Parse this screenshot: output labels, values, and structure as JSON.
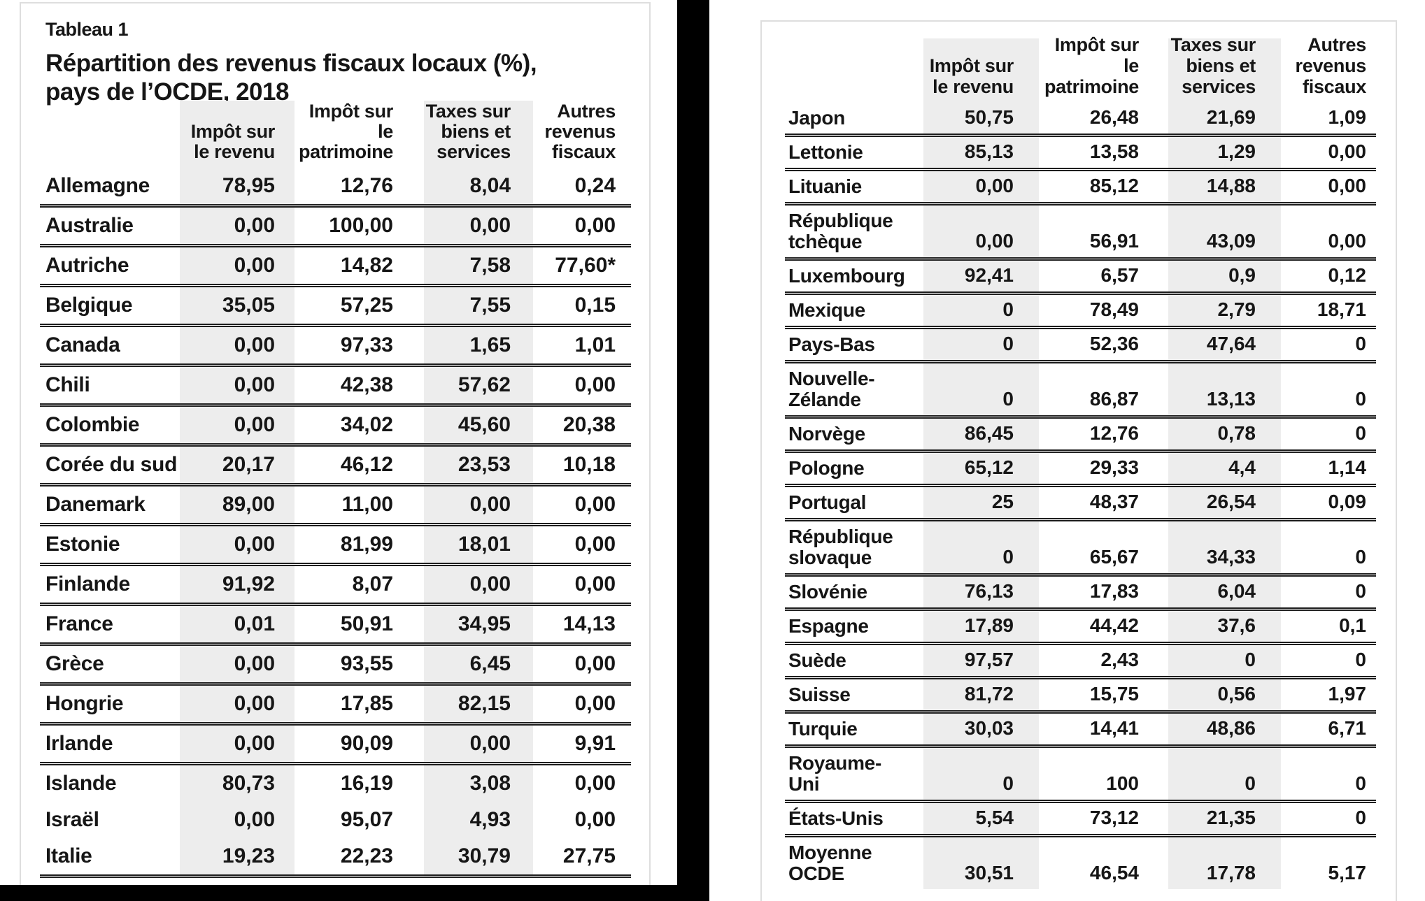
{
  "page": {
    "table_label": "Tableau 1",
    "title_line1": "Répartition des revenus fiscaux locaux (%),",
    "title_line2": "pays de l’OCDE, 2018"
  },
  "colors": {
    "column_shading": "#ededed",
    "separator_line": "#1e1e1e",
    "panel_border": "#dedede",
    "frame_black": "#000000",
    "text": "#161616"
  },
  "tables": {
    "left": {
      "headers": [
        "",
        "Impôt sur\nle revenu",
        "Impôt sur le\npatrimoine",
        "Taxes sur\nbiens et\nservices",
        "Autres\nrevenus\nfiscaux"
      ],
      "rows": [
        {
          "country": "Allemagne",
          "values": [
            "78,95",
            "12,76",
            "8,04",
            "0,24"
          ]
        },
        {
          "country": "Australie",
          "values": [
            "0,00",
            "100,00",
            "0,00",
            "0,00"
          ]
        },
        {
          "country": "Autriche",
          "values": [
            "0,00",
            "14,82",
            "7,58",
            "77,60*"
          ]
        },
        {
          "country": "Belgique",
          "values": [
            "35,05",
            "57,25",
            "7,55",
            "0,15"
          ]
        },
        {
          "country": "Canada",
          "values": [
            "0,00",
            "97,33",
            "1,65",
            "1,01"
          ]
        },
        {
          "country": "Chili",
          "values": [
            "0,00",
            "42,38",
            "57,62",
            "0,00"
          ]
        },
        {
          "country": "Colombie",
          "values": [
            "0,00",
            "34,02",
            "45,60",
            "20,38"
          ]
        },
        {
          "country": "Corée du sud",
          "values": [
            "20,17",
            "46,12",
            "23,53",
            "10,18"
          ]
        },
        {
          "country": "Danemark",
          "values": [
            "89,00",
            "11,00",
            "0,00",
            "0,00"
          ]
        },
        {
          "country": "Estonie",
          "values": [
            "0,00",
            "81,99",
            "18,01",
            "0,00"
          ]
        },
        {
          "country": "Finlande",
          "values": [
            "91,92",
            "8,07",
            "0,00",
            "0,00"
          ]
        },
        {
          "country": "France",
          "values": [
            "0,01",
            "50,91",
            "34,95",
            "14,13"
          ]
        },
        {
          "country": "Grèce",
          "values": [
            "0,00",
            "93,55",
            "6,45",
            "0,00"
          ]
        },
        {
          "country": "Hongrie",
          "values": [
            "0,00",
            "17,85",
            "82,15",
            "0,00"
          ]
        },
        {
          "country": "Irlande",
          "values": [
            "0,00",
            "90,09",
            "0,00",
            "9,91"
          ]
        },
        {
          "country": "Islande",
          "values": [
            "80,73",
            "16,19",
            "3,08",
            "0,00"
          ]
        },
        {
          "country": "Israël",
          "values": [
            "0,00",
            "95,07",
            "4,93",
            "0,00"
          ]
        },
        {
          "country": "Italie",
          "values": [
            "19,23",
            "22,23",
            "30,79",
            "27,75"
          ]
        }
      ]
    },
    "right": {
      "headers": [
        "",
        "Impôt sur\nle revenu",
        "Impôt sur le\npatrimoine",
        "Taxes sur\nbiens et\nservices",
        "Autres\nrevenus\nfiscaux"
      ],
      "rows": [
        {
          "country": "Japon",
          "values": [
            "50,75",
            "26,48",
            "21,69",
            "1,09"
          ]
        },
        {
          "country": "Lettonie",
          "values": [
            "85,13",
            "13,58",
            "1,29",
            "0,00"
          ]
        },
        {
          "country": "Lituanie",
          "values": [
            "0,00",
            "85,12",
            "14,88",
            "0,00"
          ]
        },
        {
          "country": "République\ntchèque",
          "values": [
            "0,00",
            "56,91",
            "43,09",
            "0,00"
          ]
        },
        {
          "country": "Luxembourg",
          "values": [
            "92,41",
            "6,57",
            "0,9",
            "0,12"
          ]
        },
        {
          "country": "Mexique",
          "values": [
            "0",
            "78,49",
            "2,79",
            "18,71"
          ]
        },
        {
          "country": "Pays-Bas",
          "values": [
            "0",
            "52,36",
            "47,64",
            "0"
          ]
        },
        {
          "country": "Nouvelle-\nZélande",
          "values": [
            "0",
            "86,87",
            "13,13",
            "0"
          ]
        },
        {
          "country": "Norvège",
          "values": [
            "86,45",
            "12,76",
            "0,78",
            "0"
          ]
        },
        {
          "country": "Pologne",
          "values": [
            "65,12",
            "29,33",
            "4,4",
            "1,14"
          ]
        },
        {
          "country": "Portugal",
          "values": [
            "25",
            "48,37",
            "26,54",
            "0,09"
          ]
        },
        {
          "country": "République\nslovaque",
          "values": [
            "0",
            "65,67",
            "34,33",
            "0"
          ]
        },
        {
          "country": "Slovénie",
          "values": [
            "76,13",
            "17,83",
            "6,04",
            "0"
          ]
        },
        {
          "country": "Espagne",
          "values": [
            "17,89",
            "44,42",
            "37,6",
            "0,1"
          ]
        },
        {
          "country": "Suède",
          "values": [
            "97,57",
            "2,43",
            "0",
            "0"
          ]
        },
        {
          "country": "Suisse",
          "values": [
            "81,72",
            "15,75",
            "0,56",
            "1,97"
          ]
        },
        {
          "country": "Turquie",
          "values": [
            "30,03",
            "14,41",
            "48,86",
            "6,71"
          ]
        },
        {
          "country": "Royaume-\nUni",
          "values": [
            "0",
            "100",
            "0",
            "0"
          ]
        },
        {
          "country": "États-Unis",
          "values": [
            "5,54",
            "73,12",
            "21,35",
            "0"
          ]
        },
        {
          "country": "Moyenne\nOCDE",
          "values": [
            "30,51",
            "46,54",
            "17,78",
            "5,17"
          ]
        }
      ]
    }
  }
}
